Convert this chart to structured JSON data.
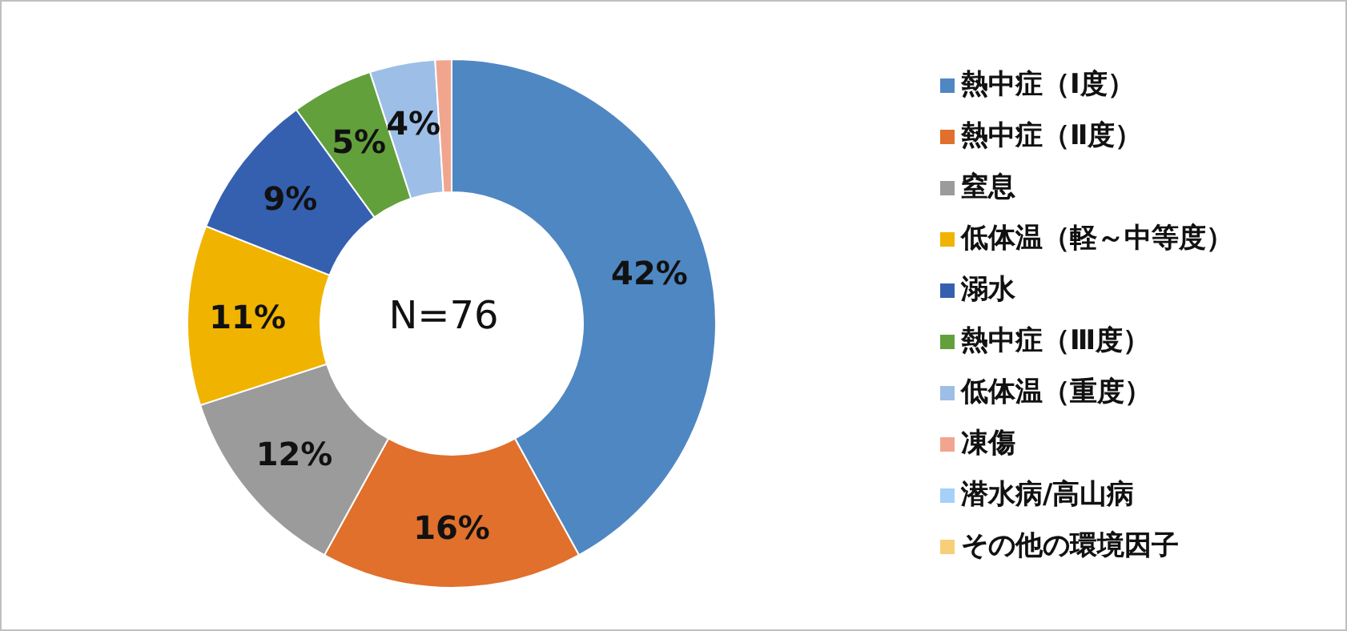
{
  "chart_data": {
    "type": "donut",
    "categories": [
      "熱中症（Ⅰ度）",
      "熱中症（Ⅱ度）",
      "窒息",
      "低体温（軽～中等度）",
      "溺水",
      "熱中症（Ⅲ度）",
      "低体温（重度）",
      "凍傷",
      "潜水病/高山病",
      "その他の環境因子"
    ],
    "values": [
      42,
      16,
      12,
      11,
      9,
      5,
      4,
      1,
      0,
      0
    ],
    "value_labels": [
      "42%",
      "16%",
      "12%",
      "11%",
      "9%",
      "5%",
      "4%",
      null,
      null,
      null
    ],
    "colors": [
      "#4f87c2",
      "#e0702c",
      "#9b9b9b",
      "#f0b400",
      "#3560b0",
      "#62a03c",
      "#9dbee6",
      "#f2a58e",
      "#a4d0fa",
      "#f7cf7a"
    ],
    "annotations": [
      "N=76"
    ],
    "legend": "right"
  }
}
